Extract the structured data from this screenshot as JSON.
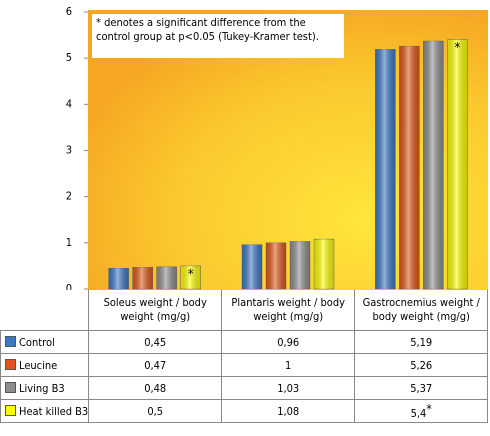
{
  "chart_data": {
    "type": "bar",
    "annotation": "* denotes a significant difference from the control group at p<0.05 (Tukey-Kramer test).",
    "categories": [
      "Soleus weight / body weight (mg/g)",
      "Plantaris weight / body weight (mg/g)",
      "Gastrocnemius weight / body weight (mg/g)"
    ],
    "significance_symbol": "*",
    "series": [
      {
        "name": "Control",
        "color": "#3b78c3",
        "values": [
          0.45,
          0.96,
          5.19
        ],
        "value_labels": [
          "0,45",
          "0,96",
          "5,19"
        ]
      },
      {
        "name": "Leucine",
        "color": "#e0561a",
        "values": [
          0.47,
          1,
          5.26
        ],
        "value_labels": [
          "0,47",
          "1",
          "5,26"
        ]
      },
      {
        "name": "Living B3",
        "color": "#8e8e8e",
        "values": [
          0.48,
          1.03,
          5.37
        ],
        "value_labels": [
          "0,48",
          "1,03",
          "5,37"
        ]
      },
      {
        "name": "Heat killed B3",
        "color": "#ffff00",
        "values": [
          0.5,
          1.08,
          5.4
        ],
        "value_labels": [
          "0,5",
          "1,08",
          "5,4"
        ],
        "significant": [
          true,
          false,
          true
        ]
      }
    ],
    "ylim": [
      0,
      6
    ],
    "yticks": [
      0,
      1,
      2,
      3,
      4,
      5,
      6
    ]
  }
}
